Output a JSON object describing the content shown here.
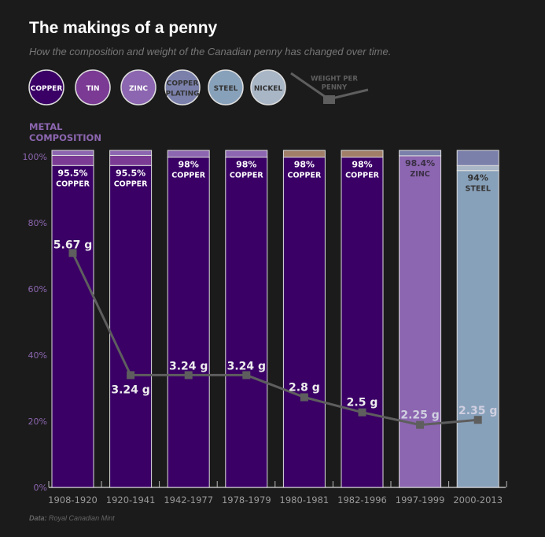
{
  "title": "The makings of a penny",
  "subtitle": "How the composition and weight of the Canadian penny has changed over time.",
  "source_label": "Data:",
  "source": "Royal Canadian Mint",
  "legend": [
    {
      "label": "COPPER",
      "color": "#3a0066",
      "text_color": "#ffffff"
    },
    {
      "label": "TIN",
      "color": "#7b3b94",
      "text_color": "#ffffff"
    },
    {
      "label": "ZINC",
      "color": "#8c66b0",
      "text_color": "#ffffff"
    },
    {
      "label": "COPPER\nPLATING",
      "color": "#7a80aa",
      "text_color": "#333333"
    },
    {
      "label": "STEEL",
      "color": "#88a1ba",
      "text_color": "#333333"
    },
    {
      "label": "NICKEL",
      "color": "#a9b6c6",
      "text_color": "#333333"
    }
  ],
  "weight_legend": "WEIGHT PER\nPENNY",
  "chart_data": {
    "type": "bar",
    "stacked": true,
    "ylabel": "METAL\nCOMPOSITION",
    "yticks": [
      "0%",
      "20%",
      "40%",
      "60%",
      "80%",
      "100%"
    ],
    "ylim": [
      0,
      100
    ],
    "categories": [
      "1908-1920",
      "1920-1941",
      "1942-1977",
      "1978-1979",
      "1980-1981",
      "1982-1996",
      "1997-1999",
      "2000-2013"
    ],
    "bars": [
      {
        "segments": [
          {
            "metal": "copper",
            "value": 95.5,
            "color": "#3a0066"
          },
          {
            "metal": "tin",
            "value": 3,
            "color": "#7b3b94"
          },
          {
            "metal": "zinc",
            "value": 1.5,
            "color": "#8c66b0"
          }
        ],
        "label_pct": "95.5%",
        "label_metal": "COPPER",
        "label_color": "#ffffff"
      },
      {
        "segments": [
          {
            "metal": "copper",
            "value": 95.5,
            "color": "#3a0066"
          },
          {
            "metal": "tin",
            "value": 3,
            "color": "#7b3b94"
          },
          {
            "metal": "zinc",
            "value": 1.5,
            "color": "#8c66b0"
          }
        ],
        "label_pct": "95.5%",
        "label_metal": "COPPER",
        "label_color": "#ffffff"
      },
      {
        "segments": [
          {
            "metal": "copper",
            "value": 98,
            "color": "#3a0066"
          },
          {
            "metal": "zinc",
            "value": 2,
            "color": "#8c66b0"
          }
        ],
        "label_pct": "98%",
        "label_metal": "COPPER",
        "label_color": "#ffffff"
      },
      {
        "segments": [
          {
            "metal": "copper",
            "value": 98,
            "color": "#3a0066"
          },
          {
            "metal": "zinc",
            "value": 2,
            "color": "#8c66b0"
          }
        ],
        "label_pct": "98%",
        "label_metal": "COPPER",
        "label_color": "#ffffff"
      },
      {
        "segments": [
          {
            "metal": "copper",
            "value": 98,
            "color": "#3a0066"
          },
          {
            "metal": "bronze",
            "value": 2,
            "color": "#a07e68"
          }
        ],
        "label_pct": "98%",
        "label_metal": "COPPER",
        "label_color": "#ffffff"
      },
      {
        "segments": [
          {
            "metal": "copper",
            "value": 98,
            "color": "#3a0066"
          },
          {
            "metal": "bronze",
            "value": 2,
            "color": "#a07e68"
          }
        ],
        "label_pct": "98%",
        "label_metal": "COPPER",
        "label_color": "#ffffff"
      },
      {
        "segments": [
          {
            "metal": "zinc",
            "value": 98.4,
            "color": "#8c66b0"
          },
          {
            "metal": "copper plating",
            "value": 1.6,
            "color": "#7a80aa"
          }
        ],
        "label_pct": "98.4%",
        "label_metal": "ZINC",
        "label_color": "#3a2f45"
      },
      {
        "segments": [
          {
            "metal": "steel",
            "value": 94,
            "color": "#88a1ba"
          },
          {
            "metal": "nickel",
            "value": 1.5,
            "color": "#a9b6c6"
          },
          {
            "metal": "copper plating",
            "value": 4.5,
            "color": "#7a80aa"
          }
        ],
        "label_pct": "94%",
        "label_metal": "STEEL",
        "label_color": "#333333"
      }
    ],
    "weight_series": {
      "values_g": [
        5.67,
        3.24,
        3.24,
        3.24,
        2.8,
        2.5,
        2.25,
        2.35
      ],
      "labels": [
        "5.67 g",
        "3.24 g",
        "3.24 g",
        "3.24 g",
        "2.8 g",
        "2.5 g",
        "2.25 g",
        "2.35 g"
      ],
      "color": "#5e5e5e"
    }
  }
}
